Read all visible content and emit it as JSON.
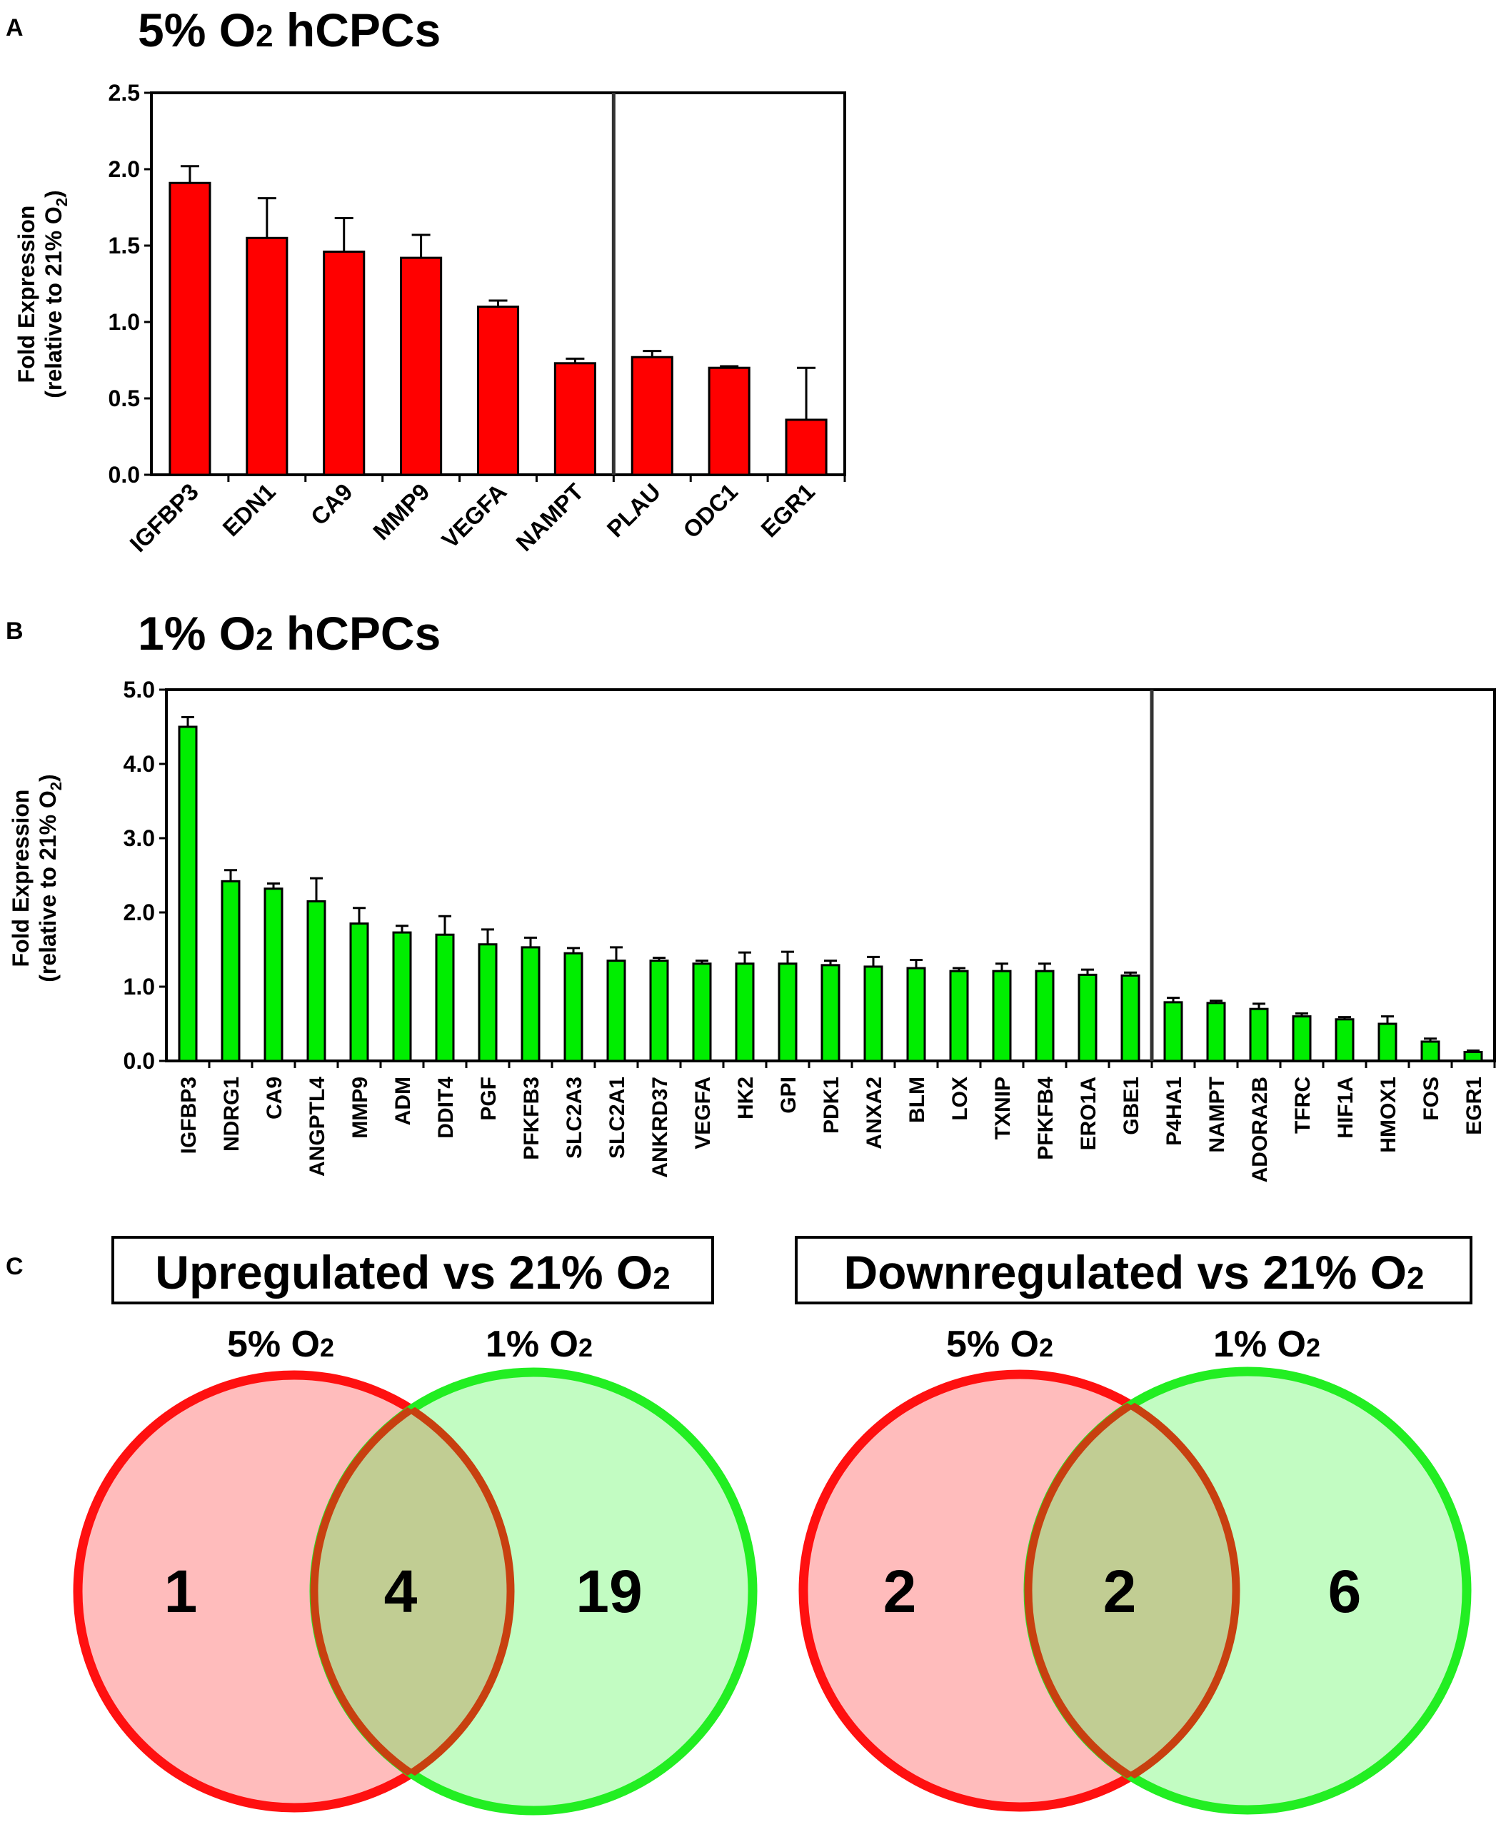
{
  "colors": {
    "red": "#ff0000",
    "green": "#00ee00",
    "venn_red_fill": "#ffbcbc",
    "venn_green_fill": "#c2fcc2",
    "venn_overlap_fill": "#c1cd93",
    "venn_overlap_stroke": "#c84010",
    "axis": "#000000"
  },
  "chart_data": [
    {
      "panel_label": "A",
      "type": "bar",
      "title_main": "5% O",
      "title_sub": "2",
      "title_rest": " hCPCs",
      "title": "5% O₂ hCPCs",
      "ylabel_line1": "Fold Expression",
      "ylabel_line2_main": "(relative to 21% O",
      "ylabel_line2_sub": "2",
      "ylabel_line2_end": ")",
      "ylabel": "Fold Expression (relative to 21% O₂)",
      "ylim": [
        0,
        2.5
      ],
      "yticks": [
        "0.0",
        "0.5",
        "1.0",
        "1.5",
        "2.0",
        "2.5"
      ],
      "ytick_values": [
        0,
        0.5,
        1.0,
        1.5,
        2.0,
        2.5
      ],
      "color_key": "red",
      "divider_after_index": 5,
      "categories": [
        "IGFBP3",
        "EDN1",
        "CA9",
        "MMP9",
        "VEGFA",
        "NAMPT",
        "PLAU",
        "ODC1",
        "EGR1"
      ],
      "values": [
        1.91,
        1.55,
        1.46,
        1.42,
        1.1,
        0.73,
        0.77,
        0.7,
        0.36
      ],
      "errors": [
        0.11,
        0.26,
        0.22,
        0.15,
        0.04,
        0.03,
        0.04,
        0.01,
        0.34
      ]
    },
    {
      "panel_label": "B",
      "type": "bar",
      "title_main": "1% O",
      "title_sub": "2",
      "title_rest": " hCPCs",
      "title": "1% O₂ hCPCs",
      "ylabel_line1": "Fold Expression",
      "ylabel_line2_main": "(relative to 21% O",
      "ylabel_line2_sub": "2",
      "ylabel_line2_end": ")",
      "ylabel": "Fold Expression (relative to 21% O₂)",
      "ylim": [
        0,
        5.0
      ],
      "yticks": [
        "0.0",
        "1.0",
        "2.0",
        "3.0",
        "4.0",
        "5.0"
      ],
      "ytick_values": [
        0,
        1.0,
        2.0,
        3.0,
        4.0,
        5.0
      ],
      "color_key": "green",
      "divider_after_index": 22,
      "categories": [
        "IGFBP3",
        "NDRG1",
        "CA9",
        "ANGPTL4",
        "MMP9",
        "ADM",
        "DDIT4",
        "PGF",
        "PFKFB3",
        "SLC2A3",
        "SLC2A1",
        "ANKRD37",
        "VEGFA",
        "HK2",
        "GPI",
        "PDK1",
        "ANXA2",
        "BLM",
        "LOX",
        "TXNIP",
        "PFKFB4",
        "ERO1A",
        "GBE1",
        "P4HA1",
        "NAMPT",
        "ADORA2B",
        "TFRC",
        "HIF1A",
        "HMOX1",
        "FOS",
        "EGR1"
      ],
      "values": [
        4.5,
        2.42,
        2.32,
        2.15,
        1.85,
        1.73,
        1.7,
        1.57,
        1.53,
        1.45,
        1.35,
        1.35,
        1.31,
        1.31,
        1.31,
        1.29,
        1.27,
        1.25,
        1.21,
        1.21,
        1.21,
        1.16,
        1.15,
        0.79,
        0.78,
        0.7,
        0.6,
        0.56,
        0.5,
        0.26,
        0.12
      ],
      "errors": [
        0.13,
        0.15,
        0.07,
        0.31,
        0.21,
        0.09,
        0.25,
        0.2,
        0.13,
        0.07,
        0.18,
        0.04,
        0.04,
        0.15,
        0.16,
        0.06,
        0.13,
        0.11,
        0.04,
        0.1,
        0.1,
        0.07,
        0.04,
        0.06,
        0.03,
        0.07,
        0.04,
        0.03,
        0.1,
        0.04,
        0.02
      ]
    }
  ],
  "panel_c": {
    "label": "C",
    "up": {
      "title_main": "Upregulated vs 21% O",
      "title_sub": "2",
      "left_label_main": "5% O",
      "left_label_sub": "2",
      "right_label_main": "1% O",
      "right_label_sub": "2",
      "left_only": "1",
      "overlap": "4",
      "right_only": "19"
    },
    "down": {
      "title_main": "Downregulated vs 21% O",
      "title_sub": "2",
      "left_label_main": "5% O",
      "left_label_sub": "2",
      "right_label_main": "1% O",
      "right_label_sub": "2",
      "left_only": "2",
      "overlap": "2",
      "right_only": "6"
    }
  }
}
